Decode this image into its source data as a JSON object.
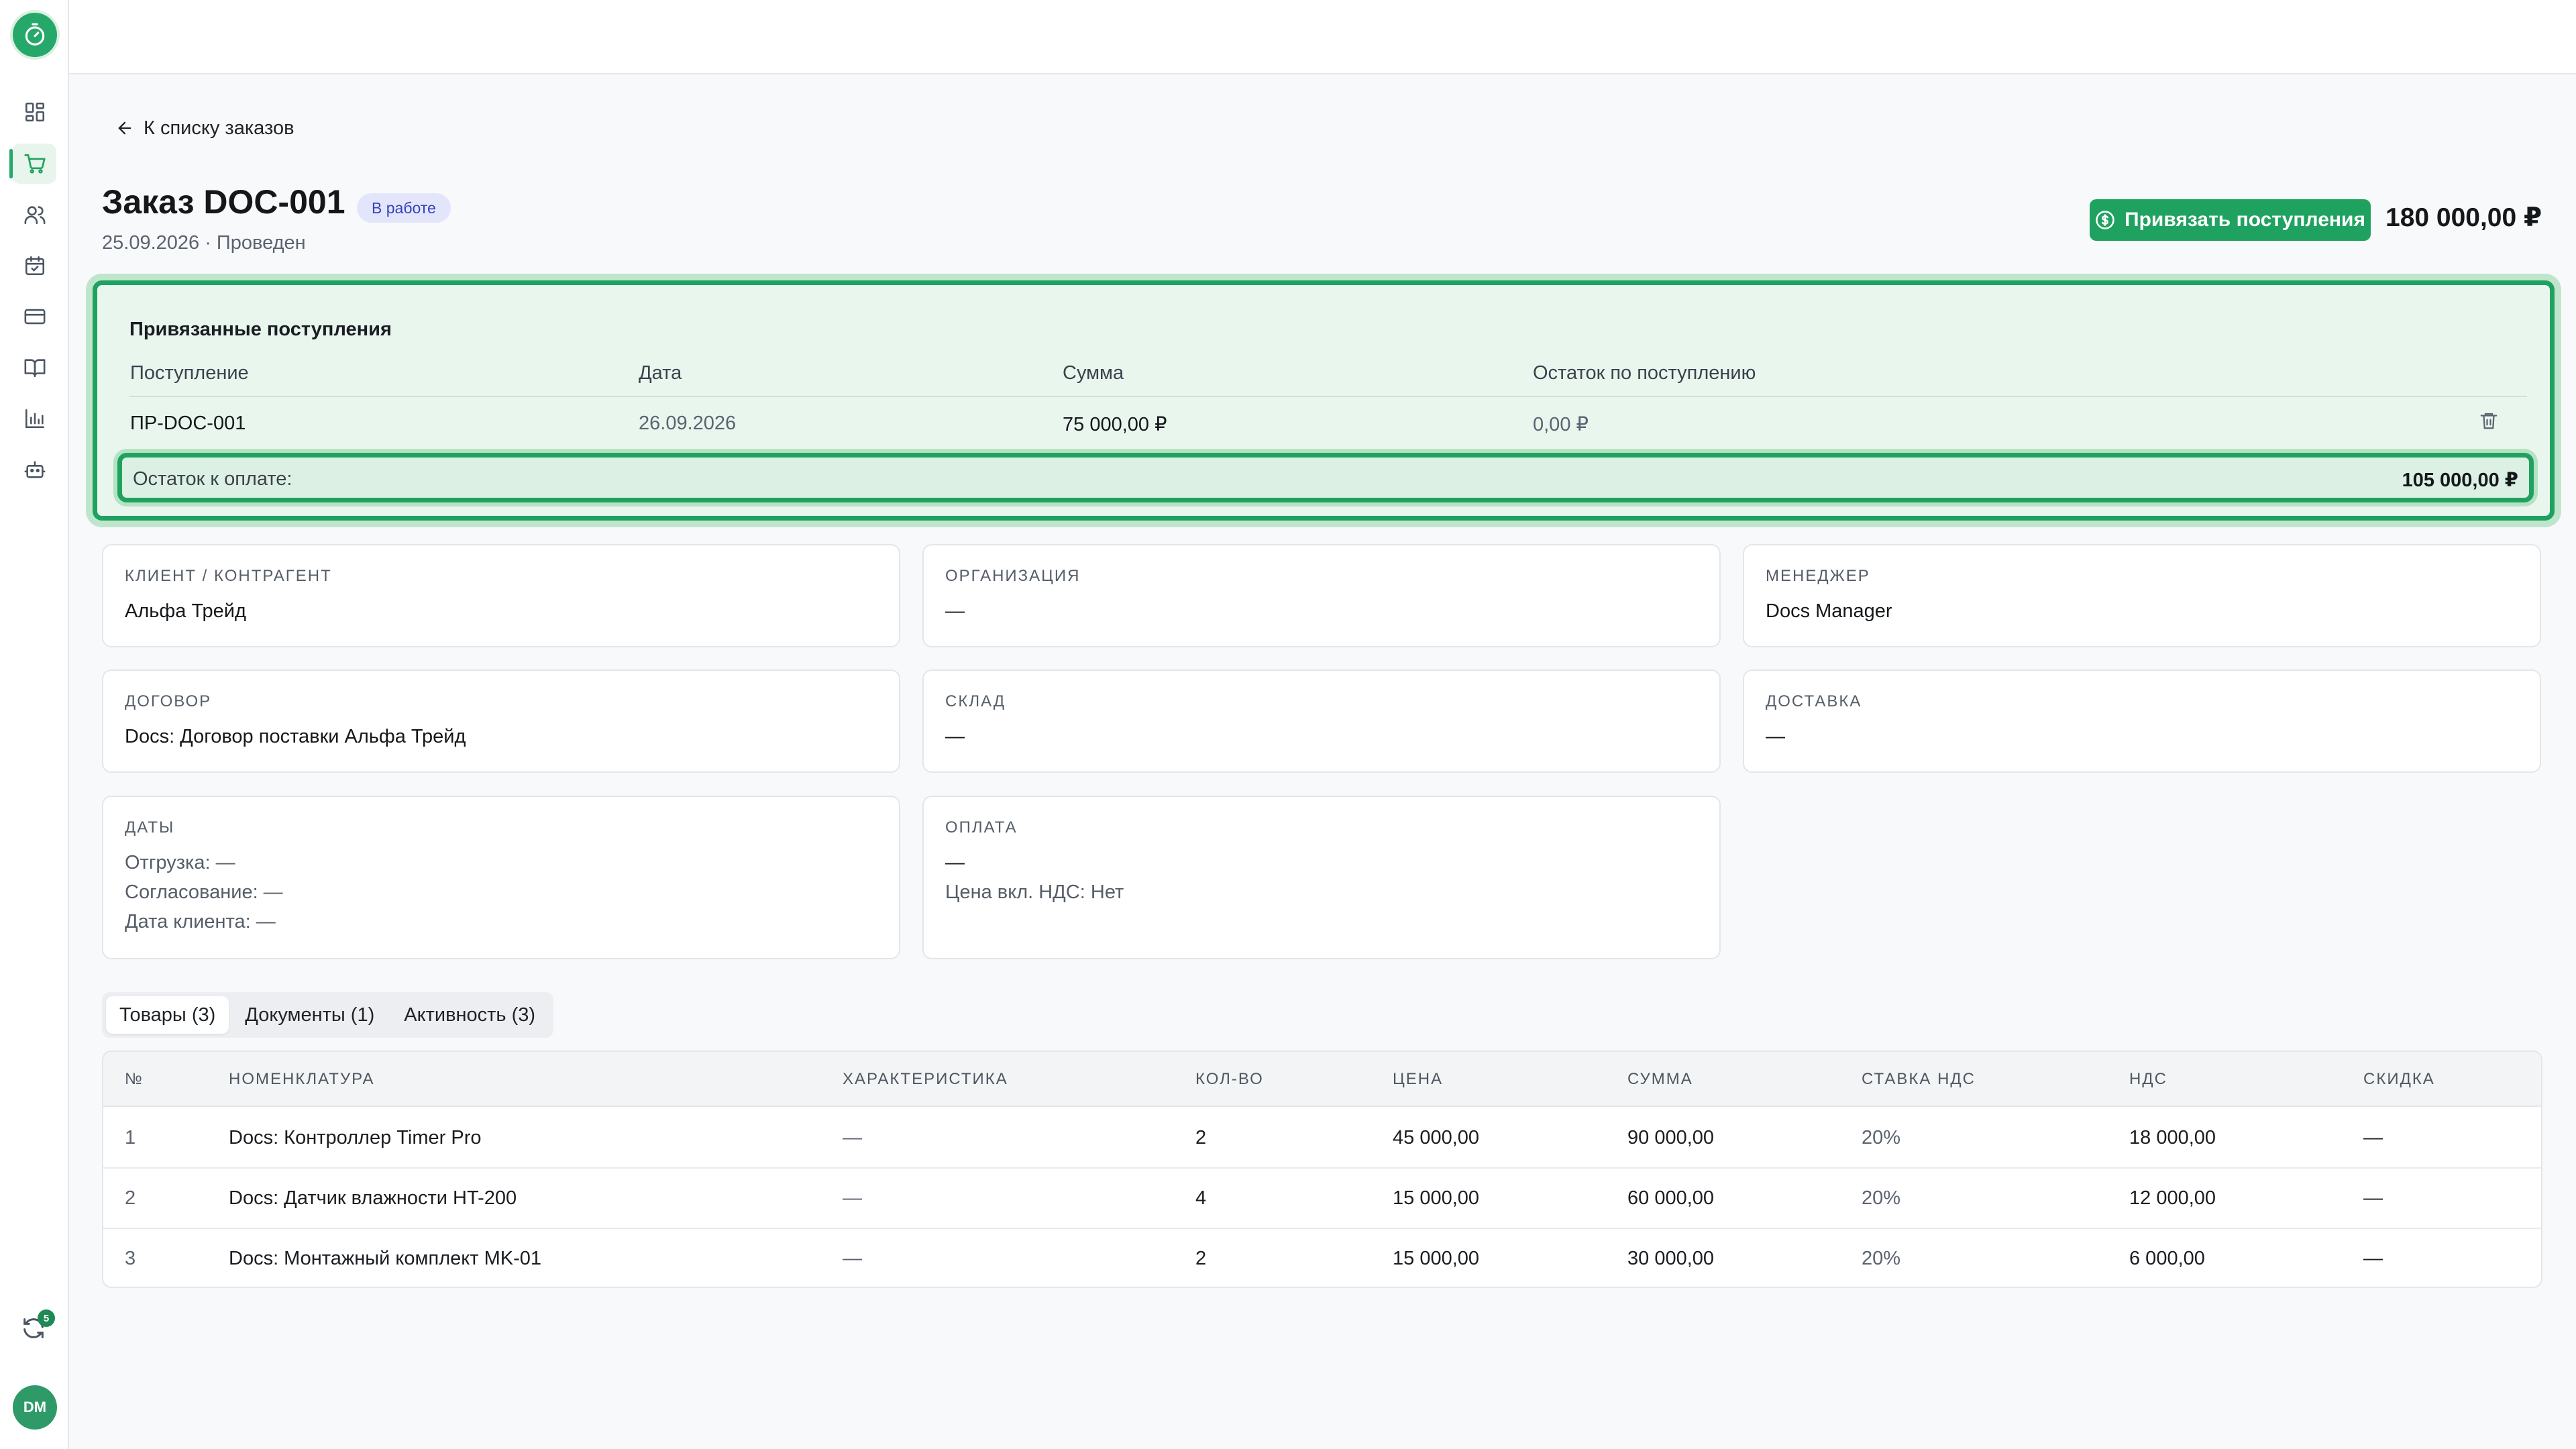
{
  "sidebar": {
    "items": [
      {
        "name": "dashboard-icon"
      },
      {
        "name": "cart-icon",
        "active": true
      },
      {
        "name": "users-icon"
      },
      {
        "name": "calendar-icon"
      },
      {
        "name": "credit-card-icon"
      },
      {
        "name": "book-icon"
      },
      {
        "name": "chart-icon"
      },
      {
        "name": "robot-icon"
      }
    ],
    "sync_badge": "5",
    "avatar_initials": "DM"
  },
  "colors": {
    "accent": "#1fa260",
    "status_badge_bg": "#e3e6fb",
    "status_badge_text": "#3443b8"
  },
  "header": {
    "back_label": "К списку заказов",
    "title": "Заказ DOC-001",
    "status": "В работе",
    "subtitle": "25.09.2026 · Проведен",
    "primary_button": "Привязать поступления",
    "total": "180 000,00 ₽"
  },
  "linked": {
    "title": "Привязанные поступления",
    "columns": [
      "Поступление",
      "Дата",
      "Сумма",
      "Остаток по поступлению"
    ],
    "rows": [
      {
        "receipt": "ПР-DOC-001",
        "date": "26.09.2026",
        "amount": "75 000,00 ₽",
        "remaining": "0,00 ₽"
      }
    ],
    "remaining_label": "Остаток к оплате:",
    "remaining_value": "105 000,00 ₽"
  },
  "cards": {
    "client": {
      "label": "Клиент / контрагент",
      "value": "Альфа Трейд"
    },
    "organization": {
      "label": "Организация",
      "value": "—"
    },
    "manager": {
      "label": "Менеджер",
      "value": "Docs Manager"
    },
    "contract": {
      "label": "Договор",
      "value": "Docs: Договор поставки Альфа Трейд"
    },
    "warehouse": {
      "label": "Склад",
      "value": "—"
    },
    "delivery": {
      "label": "Доставка",
      "value": "—"
    },
    "dates": {
      "label": "Даты",
      "shipment": "Отгрузка: —",
      "approval": "Согласование: —",
      "client_date": "Дата клиента: —"
    },
    "payment": {
      "label": "Оплата",
      "value": "—",
      "vat_note": "Цена вкл. НДС: Нет"
    }
  },
  "tabs": [
    {
      "label": "Товары (3)",
      "active": true
    },
    {
      "label": "Документы (1)"
    },
    {
      "label": "Активность (3)"
    }
  ],
  "items_table": {
    "columns": [
      "№",
      "Номенклатура",
      "Характеристика",
      "Кол-во",
      "Цена",
      "Сумма",
      "Ставка НДС",
      "НДС",
      "Скидка"
    ],
    "rows": [
      {
        "n": "1",
        "name": "Docs: Контроллер Timer Pro",
        "char": "—",
        "qty": "2",
        "price": "45 000,00",
        "sum": "90 000,00",
        "vat_rate": "20%",
        "vat": "18 000,00",
        "discount": "—"
      },
      {
        "n": "2",
        "name": "Docs: Датчик влажности HT-200",
        "char": "—",
        "qty": "4",
        "price": "15 000,00",
        "sum": "60 000,00",
        "vat_rate": "20%",
        "vat": "12 000,00",
        "discount": "—"
      },
      {
        "n": "3",
        "name": "Docs: Монтажный комплект MK-01",
        "char": "—",
        "qty": "2",
        "price": "15 000,00",
        "sum": "30 000,00",
        "vat_rate": "20%",
        "vat": "6 000,00",
        "discount": "—"
      }
    ]
  }
}
